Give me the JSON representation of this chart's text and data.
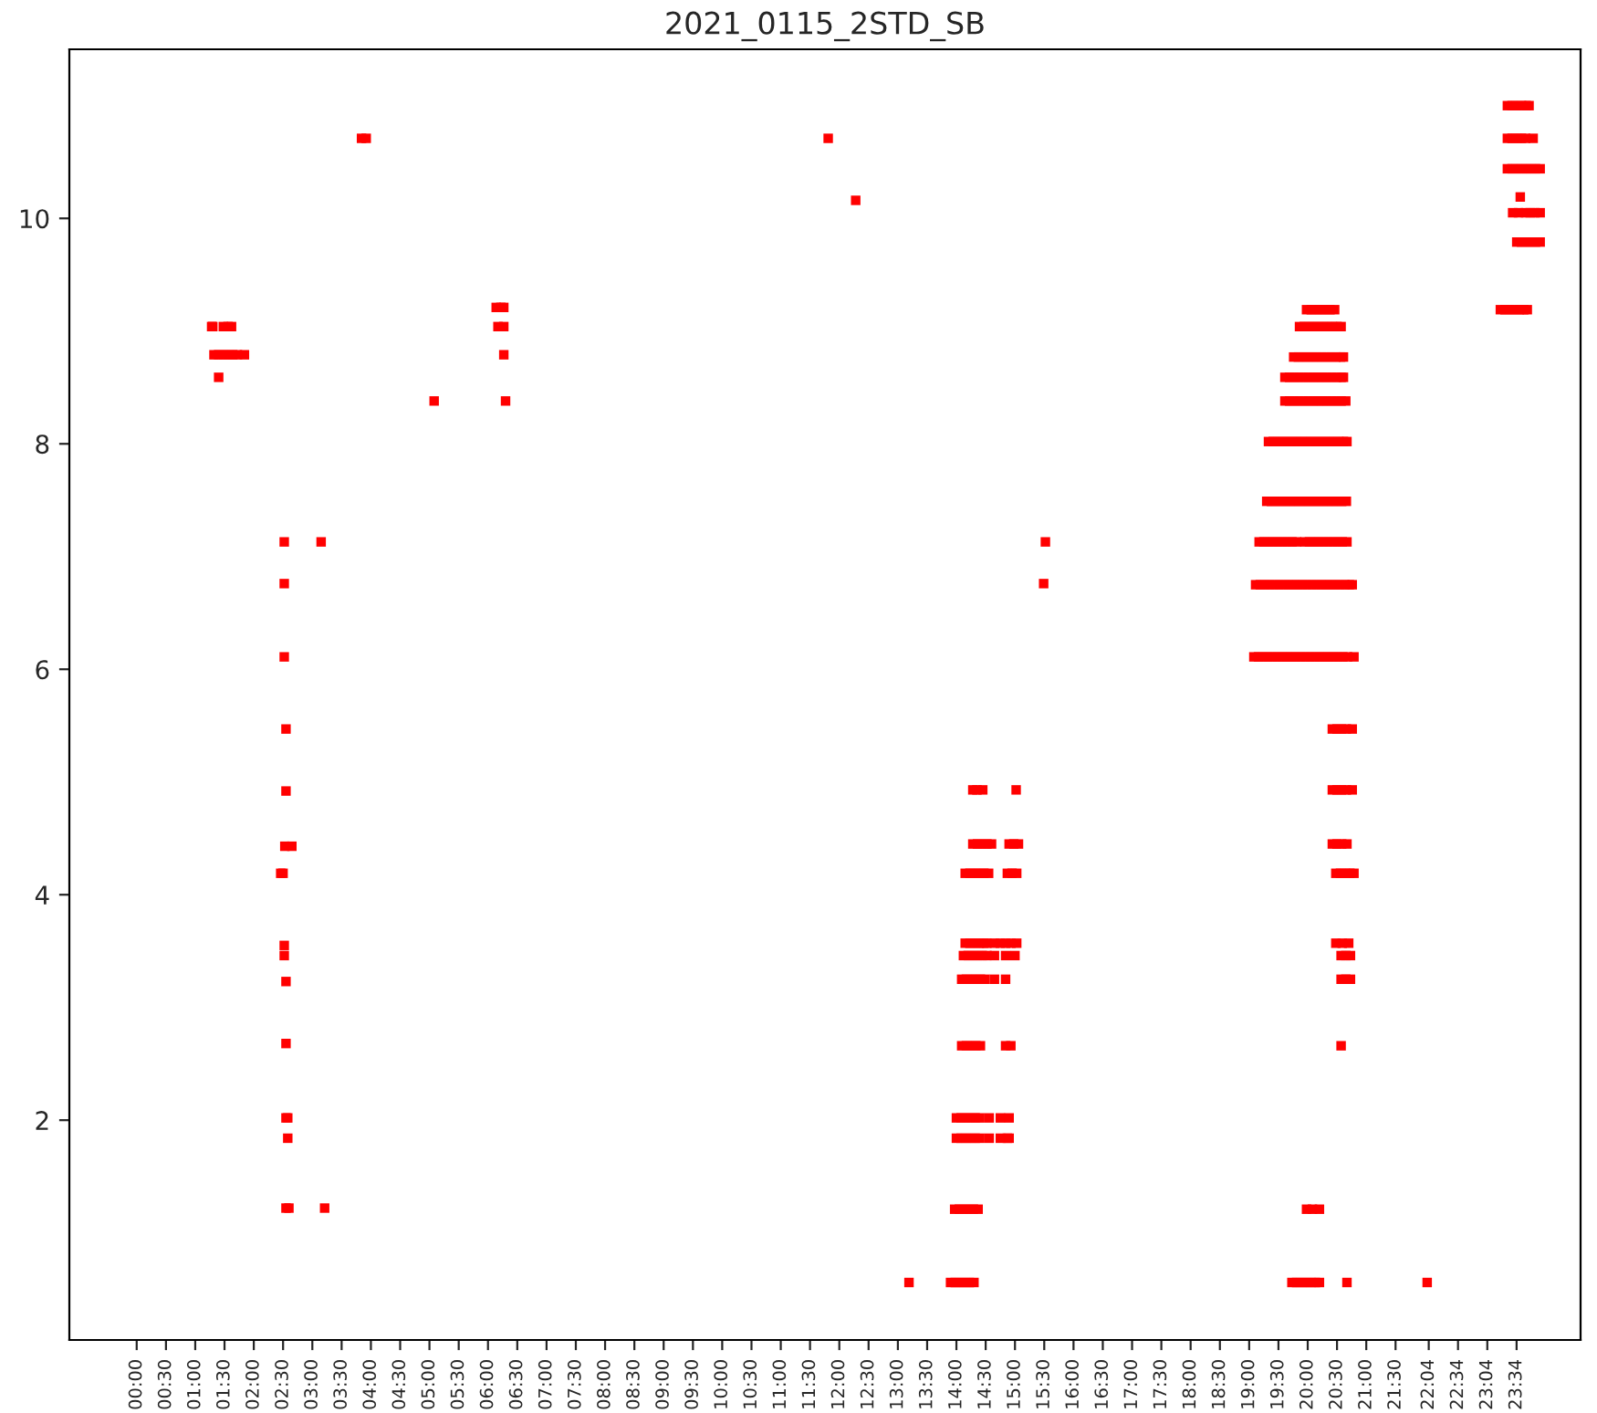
{
  "chart_data": {
    "type": "scatter",
    "title": "2021_0115_2STD_SB",
    "xlim": [
      -1.15,
      24.66
    ],
    "ylim": [
      0.05,
      11.5
    ],
    "yticks": [
      2,
      4,
      6,
      8,
      10
    ],
    "xticks": [
      {
        "value": 0,
        "label": "00:00"
      },
      {
        "value": 0.5,
        "label": "00:30"
      },
      {
        "value": 1,
        "label": "01:00"
      },
      {
        "value": 1.5,
        "label": "01:30"
      },
      {
        "value": 2,
        "label": "02:00"
      },
      {
        "value": 2.5,
        "label": "02:30"
      },
      {
        "value": 3,
        "label": "03:00"
      },
      {
        "value": 3.5,
        "label": "03:30"
      },
      {
        "value": 4,
        "label": "04:00"
      },
      {
        "value": 4.5,
        "label": "04:30"
      },
      {
        "value": 5,
        "label": "05:00"
      },
      {
        "value": 5.5,
        "label": "05:30"
      },
      {
        "value": 6,
        "label": "06:00"
      },
      {
        "value": 6.5,
        "label": "06:30"
      },
      {
        "value": 7,
        "label": "07:00"
      },
      {
        "value": 7.5,
        "label": "07:30"
      },
      {
        "value": 8,
        "label": "08:00"
      },
      {
        "value": 8.5,
        "label": "08:30"
      },
      {
        "value": 9,
        "label": "09:00"
      },
      {
        "value": 9.5,
        "label": "09:30"
      },
      {
        "value": 10,
        "label": "10:00"
      },
      {
        "value": 10.5,
        "label": "10:30"
      },
      {
        "value": 11,
        "label": "11:00"
      },
      {
        "value": 11.5,
        "label": "11:30"
      },
      {
        "value": 12,
        "label": "12:00"
      },
      {
        "value": 12.5,
        "label": "12:30"
      },
      {
        "value": 13,
        "label": "13:00"
      },
      {
        "value": 13.5,
        "label": "13:30"
      },
      {
        "value": 14,
        "label": "14:00"
      },
      {
        "value": 14.5,
        "label": "14:30"
      },
      {
        "value": 15,
        "label": "15:00"
      },
      {
        "value": 15.5,
        "label": "15:30"
      },
      {
        "value": 16,
        "label": "16:00"
      },
      {
        "value": 16.5,
        "label": "16:30"
      },
      {
        "value": 17,
        "label": "17:00"
      },
      {
        "value": 17.5,
        "label": "17:30"
      },
      {
        "value": 18,
        "label": "18:00"
      },
      {
        "value": 18.5,
        "label": "18:30"
      },
      {
        "value": 19,
        "label": "19:00"
      },
      {
        "value": 19.5,
        "label": "19:30"
      },
      {
        "value": 20,
        "label": "20:00"
      },
      {
        "value": 20.5,
        "label": "20:30"
      },
      {
        "value": 21,
        "label": "21:00"
      },
      {
        "value": 21.5,
        "label": "21:30"
      },
      {
        "value": 22.067,
        "label": "22:04"
      },
      {
        "value": 22.567,
        "label": "22:34"
      },
      {
        "value": 23.067,
        "label": "23:04"
      },
      {
        "value": 23.567,
        "label": "23:34"
      }
    ],
    "color": "#ff0000",
    "marker": "square",
    "x": [
      3.84,
      3.92,
      11.81,
      23.41,
      23.49,
      23.57,
      23.65,
      23.72,
      23.85,
      1.28,
      1.3,
      1.48,
      1.56,
      1.62,
      6.17,
      6.27,
      1.32,
      1.4,
      1.48,
      1.56,
      1.64,
      1.72,
      1.84,
      6.27,
      1.4,
      2.52,
      3.15,
      15.52,
      2.52,
      15.49,
      2.52,
      2.55,
      2.55,
      2.53,
      2.65,
      2.46,
      2.5,
      2.52,
      2.52,
      2.55,
      2.55,
      2.55,
      2.58,
      2.58,
      2.55,
      2.6,
      3.21,
      5.08,
      6.3,
      6.14,
      6.22,
      6.27,
      12.28,
      13.19,
      13.9,
      13.98,
      14.06,
      14.14,
      14.22,
      14.3,
      19.73,
      19.81,
      19.89,
      19.97,
      20.05,
      20.13,
      20.2,
      20.67,
      22.04,
      13.97,
      14.05,
      14.13,
      14.21,
      14.29,
      14.37,
      19.98,
      20.08,
      20.2,
      14.0,
      14.08,
      14.16,
      14.24,
      14.32,
      14.4,
      14.56,
      14.75,
      14.87,
      14.9,
      14.0,
      14.08,
      14.16,
      14.24,
      14.32,
      14.4,
      14.56,
      14.75,
      14.9,
      14.09,
      14.17,
      14.25,
      14.33,
      14.41,
      14.84,
      14.93,
      20.57,
      14.09,
      14.17,
      14.25,
      14.33,
      14.41,
      14.49,
      14.65,
      14.84,
      20.57,
      20.65,
      20.73,
      14.12,
      14.2,
      14.28,
      14.36,
      14.44,
      14.52,
      14.65,
      14.84,
      15.0,
      20.57,
      20.65,
      20.73,
      14.15,
      14.23,
      14.31,
      14.39,
      14.47,
      14.52,
      14.65,
      14.75,
      14.84,
      14.93,
      15.03,
      20.48,
      20.59,
      20.7,
      14.15,
      14.23,
      14.31,
      14.39,
      14.47,
      14.55,
      14.87,
      14.95,
      15.03,
      20.48,
      20.56,
      20.64,
      20.72,
      20.79,
      14.28,
      14.36,
      14.44,
      14.52,
      14.6,
      14.9,
      14.98,
      15.06,
      20.42,
      20.5,
      20.58,
      20.67,
      14.28,
      14.35,
      14.45,
      15.02,
      20.42,
      20.5,
      20.58,
      20.66,
      20.76,
      20.42,
      20.5,
      20.58,
      20.66,
      20.76,
      19.08,
      19.16,
      19.24,
      19.32,
      19.4,
      19.48,
      19.56,
      19.64,
      19.72,
      19.8,
      19.88,
      19.96,
      20.04,
      20.12,
      20.2,
      20.28,
      20.36,
      20.44,
      20.52,
      20.6,
      20.68,
      20.79,
      19.11,
      19.19,
      19.27,
      19.35,
      19.43,
      19.51,
      19.59,
      19.67,
      19.75,
      19.83,
      19.91,
      19.99,
      20.07,
      20.15,
      20.23,
      20.31,
      20.39,
      20.47,
      20.55,
      20.63,
      20.71,
      20.76,
      19.17,
      19.25,
      19.33,
      19.41,
      19.49,
      19.57,
      19.65,
      19.73,
      19.81,
      19.95,
      20.03,
      20.11,
      20.19,
      20.27,
      20.35,
      20.43,
      20.51,
      20.59,
      20.67,
      19.3,
      19.38,
      19.46,
      19.54,
      19.62,
      19.7,
      19.78,
      19.86,
      19.94,
      20.02,
      20.1,
      20.18,
      20.26,
      20.34,
      20.42,
      20.5,
      20.58,
      20.66,
      19.33,
      19.41,
      19.49,
      19.57,
      19.65,
      19.73,
      19.81,
      19.89,
      19.97,
      20.05,
      20.13,
      20.21,
      20.29,
      20.37,
      20.45,
      20.53,
      20.61,
      20.67,
      19.61,
      19.69,
      19.77,
      19.85,
      19.93,
      20.01,
      20.09,
      20.17,
      20.25,
      20.33,
      20.41,
      20.49,
      20.57,
      20.65,
      19.61,
      19.69,
      19.77,
      19.85,
      19.93,
      20.01,
      20.09,
      20.17,
      20.25,
      20.33,
      20.41,
      20.49,
      20.57,
      20.61,
      19.76,
      19.84,
      19.92,
      20.0,
      20.08,
      20.16,
      20.24,
      20.32,
      20.4,
      20.48,
      20.56,
      20.61,
      19.86,
      19.94,
      20.02,
      20.1,
      20.18,
      20.26,
      20.34,
      20.42,
      20.5,
      20.57,
      19.98,
      20.06,
      20.14,
      20.22,
      20.3,
      20.38,
      20.46,
      23.29,
      23.37,
      23.45,
      23.53,
      23.61,
      23.69,
      23.75,
      23.57,
      23.65,
      23.73,
      23.81,
      23.89,
      23.97,
      23.5,
      23.6,
      23.72,
      23.8,
      23.88,
      23.97,
      23.63,
      23.41,
      23.49,
      23.57,
      23.65,
      23.73,
      23.81,
      23.89,
      23.97,
      23.41,
      23.49,
      23.57,
      23.65,
      23.73,
      23.78
    ],
    "values": [
      10.71,
      10.71,
      10.71,
      10.71,
      10.71,
      10.71,
      10.71,
      10.71,
      10.71,
      9.04,
      9.04,
      9.04,
      9.04,
      9.04,
      9.04,
      9.04,
      8.79,
      8.79,
      8.79,
      8.79,
      8.79,
      8.79,
      8.79,
      8.79,
      8.59,
      7.13,
      7.13,
      7.13,
      6.76,
      6.76,
      6.11,
      5.47,
      4.92,
      4.43,
      4.43,
      4.19,
      4.19,
      3.55,
      3.46,
      3.23,
      2.68,
      2.02,
      2.02,
      1.84,
      1.22,
      1.22,
      1.22,
      8.38,
      8.38,
      9.21,
      9.21,
      9.21,
      10.16,
      0.56,
      0.56,
      0.56,
      0.56,
      0.56,
      0.56,
      0.56,
      0.56,
      0.56,
      0.56,
      0.56,
      0.56,
      0.56,
      0.56,
      0.56,
      0.56,
      1.21,
      1.21,
      1.21,
      1.21,
      1.21,
      1.21,
      1.21,
      1.21,
      1.21,
      1.84,
      1.84,
      1.84,
      1.84,
      1.84,
      1.84,
      1.84,
      1.84,
      1.84,
      1.84,
      2.02,
      2.02,
      2.02,
      2.02,
      2.02,
      2.02,
      2.02,
      2.02,
      2.02,
      2.66,
      2.66,
      2.66,
      2.66,
      2.66,
      2.66,
      2.66,
      2.66,
      3.25,
      3.25,
      3.25,
      3.25,
      3.25,
      3.25,
      3.25,
      3.25,
      3.25,
      3.25,
      3.25,
      3.46,
      3.46,
      3.46,
      3.46,
      3.46,
      3.46,
      3.46,
      3.46,
      3.46,
      3.46,
      3.46,
      3.46,
      3.57,
      3.57,
      3.57,
      3.57,
      3.57,
      3.57,
      3.57,
      3.57,
      3.57,
      3.57,
      3.57,
      3.57,
      3.57,
      3.57,
      4.19,
      4.19,
      4.19,
      4.19,
      4.19,
      4.19,
      4.19,
      4.19,
      4.19,
      4.19,
      4.19,
      4.19,
      4.19,
      4.19,
      4.45,
      4.45,
      4.45,
      4.45,
      4.45,
      4.45,
      4.45,
      4.45,
      4.45,
      4.45,
      4.45,
      4.45,
      4.93,
      4.93,
      4.93,
      4.93,
      4.93,
      4.93,
      4.93,
      4.93,
      4.93,
      5.47,
      5.47,
      5.47,
      5.47,
      5.47,
      6.11,
      6.11,
      6.11,
      6.11,
      6.11,
      6.11,
      6.11,
      6.11,
      6.11,
      6.11,
      6.11,
      6.11,
      6.11,
      6.11,
      6.11,
      6.11,
      6.11,
      6.11,
      6.11,
      6.11,
      6.11,
      6.11,
      6.75,
      6.75,
      6.75,
      6.75,
      6.75,
      6.75,
      6.75,
      6.75,
      6.75,
      6.75,
      6.75,
      6.75,
      6.75,
      6.75,
      6.75,
      6.75,
      6.75,
      6.75,
      6.75,
      6.75,
      6.75,
      6.75,
      7.13,
      7.13,
      7.13,
      7.13,
      7.13,
      7.13,
      7.13,
      7.13,
      7.13,
      7.13,
      7.13,
      7.13,
      7.13,
      7.13,
      7.13,
      7.13,
      7.13,
      7.13,
      7.13,
      7.49,
      7.49,
      7.49,
      7.49,
      7.49,
      7.49,
      7.49,
      7.49,
      7.49,
      7.49,
      7.49,
      7.49,
      7.49,
      7.49,
      7.49,
      7.49,
      7.49,
      7.49,
      8.02,
      8.02,
      8.02,
      8.02,
      8.02,
      8.02,
      8.02,
      8.02,
      8.02,
      8.02,
      8.02,
      8.02,
      8.02,
      8.02,
      8.02,
      8.02,
      8.02,
      8.02,
      8.38,
      8.38,
      8.38,
      8.38,
      8.38,
      8.38,
      8.38,
      8.38,
      8.38,
      8.38,
      8.38,
      8.38,
      8.38,
      8.38,
      8.59,
      8.59,
      8.59,
      8.59,
      8.59,
      8.59,
      8.59,
      8.59,
      8.59,
      8.59,
      8.59,
      8.59,
      8.59,
      8.59,
      8.77,
      8.77,
      8.77,
      8.77,
      8.77,
      8.77,
      8.77,
      8.77,
      8.77,
      8.77,
      8.77,
      8.77,
      9.04,
      9.04,
      9.04,
      9.04,
      9.04,
      9.04,
      9.04,
      9.04,
      9.04,
      9.04,
      9.19,
      9.19,
      9.19,
      9.19,
      9.19,
      9.19,
      9.19,
      9.19,
      9.19,
      9.19,
      9.19,
      9.19,
      9.19,
      9.19,
      9.79,
      9.79,
      9.79,
      9.79,
      9.79,
      9.79,
      10.05,
      10.05,
      10.05,
      10.05,
      10.05,
      10.05,
      10.19,
      10.44,
      10.44,
      10.44,
      10.44,
      10.44,
      10.44,
      10.44,
      10.44,
      11.0,
      11.0,
      11.0,
      11.0,
      11.0,
      11.0
    ]
  }
}
